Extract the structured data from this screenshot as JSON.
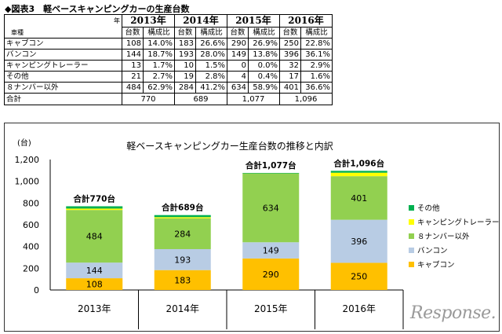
{
  "table": {
    "title": "◆図表3　軽ベースキャンピングカーの生産台数",
    "corner_year_label": "年",
    "corner_type_label": "車種",
    "years": [
      "2013年",
      "2014年",
      "2015年",
      "2016年"
    ],
    "subheaders": [
      "台数",
      "構成比"
    ],
    "rows": [
      {
        "name": "キャブコン",
        "cells": [
          "108",
          "14.0%",
          "183",
          "26.6%",
          "290",
          "26.9%",
          "250",
          "22.8%"
        ]
      },
      {
        "name": "バンコン",
        "cells": [
          "144",
          "18.7%",
          "193",
          "28.0%",
          "149",
          "13.8%",
          "396",
          "36.1%"
        ]
      },
      {
        "name": "キャンピングトレーラー",
        "cells": [
          "13",
          "1.7%",
          "10",
          "1.5%",
          "0",
          "0.0%",
          "32",
          "2.9%"
        ]
      },
      {
        "name": "その他",
        "cells": [
          "21",
          "2.7%",
          "19",
          "2.8%",
          "4",
          "0.4%",
          "17",
          "1.6%"
        ]
      },
      {
        "name": "８ナンバー以外",
        "cells": [
          "484",
          "62.9%",
          "284",
          "41.2%",
          "634",
          "58.9%",
          "401",
          "36.6%"
        ]
      }
    ],
    "total": {
      "name": "合計",
      "cells": [
        "770",
        "689",
        "1,077",
        "1,096"
      ]
    }
  },
  "chart_data": {
    "type": "bar",
    "stacked": true,
    "title": "軽ベースキャンピングカー生産台数の推移と内訳",
    "y_unit_label": "(台)",
    "categories": [
      "2013年",
      "2014年",
      "2015年",
      "2016年"
    ],
    "ylim": [
      0,
      1200
    ],
    "yticks": [
      "0",
      "200",
      "400",
      "600",
      "800",
      "1,000",
      "1,200"
    ],
    "ytick_values": [
      0,
      200,
      400,
      600,
      800,
      1000,
      1200
    ],
    "grid": false,
    "legend_position": "right",
    "series": [
      {
        "name": "キャブコン",
        "color": "#FFC000",
        "values": [
          108,
          183,
          290,
          250
        ],
        "labels": [
          "108",
          "183",
          "290",
          "250"
        ]
      },
      {
        "name": "バンコン",
        "color": "#B8CCE4",
        "values": [
          144,
          193,
          149,
          396
        ],
        "labels": [
          "144",
          "193",
          "149",
          "396"
        ]
      },
      {
        "name": "８ナンバー以外",
        "color": "#92D050",
        "values": [
          484,
          284,
          634,
          401
        ],
        "labels": [
          "484",
          "284",
          "634",
          "401"
        ]
      },
      {
        "name": "キャンピングトレーラー",
        "color": "#FFFF00",
        "values": [
          13,
          10,
          0,
          32
        ],
        "labels": [
          "",
          "",
          "",
          ""
        ]
      },
      {
        "name": "その他",
        "color": "#00B050",
        "values": [
          21,
          19,
          4,
          17
        ],
        "labels": [
          "",
          "",
          "",
          ""
        ]
      }
    ],
    "totals": [
      "合計770台",
      "合計689台",
      "合計1,077台",
      "合計1,096台"
    ],
    "legend_order": [
      "その他",
      "キャンピングトレーラー",
      "８ナンバー以外",
      "バンコン",
      "キャブコン"
    ]
  },
  "watermark": "Response."
}
